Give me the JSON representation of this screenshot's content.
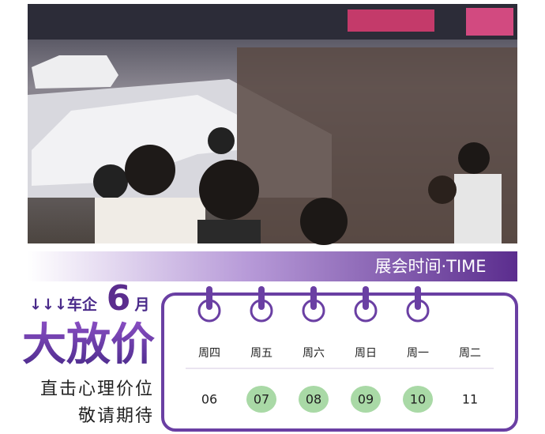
{
  "banner": {
    "title": "展会时间·TIME"
  },
  "headline": {
    "prefix": "↓↓↓车企",
    "month_number": "6",
    "month_unit": "月",
    "main": "大放价",
    "line1": "直击心理价位",
    "line2": "敬请期待"
  },
  "calendar": {
    "highlight_color": "#a9d9a6",
    "days": [
      {
        "weekday": "周四",
        "date": "06",
        "highlighted": false
      },
      {
        "weekday": "周五",
        "date": "07",
        "highlighted": true
      },
      {
        "weekday": "周六",
        "date": "08",
        "highlighted": true
      },
      {
        "weekday": "周日",
        "date": "09",
        "highlighted": true
      },
      {
        "weekday": "周一",
        "date": "10",
        "highlighted": true
      },
      {
        "weekday": "周二",
        "date": "11",
        "highlighted": false
      }
    ]
  }
}
